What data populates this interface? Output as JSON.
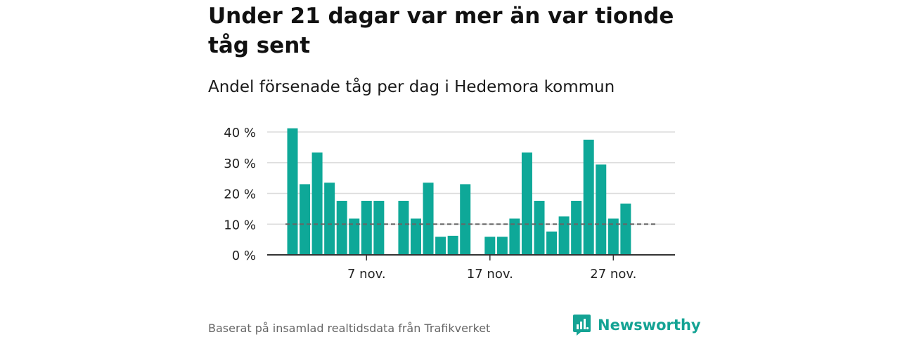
{
  "header": {
    "title": "Under 21 dagar var mer än var tionde tåg sent",
    "subtitle": "Andel försenade tåg per dag i Hedemora kommun"
  },
  "footer": {
    "source": "Baserat på insamlad realtidsdata från Trafikverket",
    "brand": "Newsworthy"
  },
  "colors": {
    "bar": "#0ea898",
    "reference_line": "#666666",
    "grid": "#dcdcdc",
    "brand": "#14a394"
  },
  "chart_data": {
    "type": "bar",
    "title": "Under 21 dagar var mer än var tionde tåg sent",
    "subtitle": "Andel försenade tåg per dag i Hedemora kommun",
    "xlabel": "",
    "ylabel": "",
    "x": [
      "2023-11-01",
      "2023-11-02",
      "2023-11-03",
      "2023-11-04",
      "2023-11-05",
      "2023-11-06",
      "2023-11-07",
      "2023-11-08",
      "2023-11-09",
      "2023-11-10",
      "2023-11-11",
      "2023-11-12",
      "2023-11-13",
      "2023-11-14",
      "2023-11-15",
      "2023-11-16",
      "2023-11-17",
      "2023-11-18",
      "2023-11-19",
      "2023-11-20",
      "2023-11-21",
      "2023-11-22",
      "2023-11-23",
      "2023-11-24",
      "2023-11-25",
      "2023-11-26",
      "2023-11-27",
      "2023-11-28",
      "2023-11-29",
      "2023-11-30"
    ],
    "values": [
      41.2,
      23,
      33.3,
      23.5,
      17.6,
      11.8,
      17.6,
      17.6,
      null,
      17.6,
      11.8,
      23.5,
      5.9,
      6.2,
      23,
      null,
      5.9,
      5.9,
      11.8,
      33.3,
      17.6,
      7.6,
      12.5,
      17.6,
      37.5,
      29.4,
      11.8,
      16.7,
      null,
      null
    ],
    "reference_line": {
      "value": 10,
      "style": "dashed"
    },
    "ylim": [
      0,
      42
    ],
    "y_ticks": [
      0,
      10,
      20,
      30,
      40
    ],
    "y_tick_labels": [
      "0 %",
      "10 %",
      "20 %",
      "30 %",
      "40 %"
    ],
    "x_tick_labels": [
      {
        "date": "2023-11-07",
        "label": "7 nov."
      },
      {
        "date": "2023-11-17",
        "label": "17 nov."
      },
      {
        "date": "2023-11-27",
        "label": "27 nov."
      }
    ],
    "grid": "horizontal",
    "legend": "none"
  }
}
